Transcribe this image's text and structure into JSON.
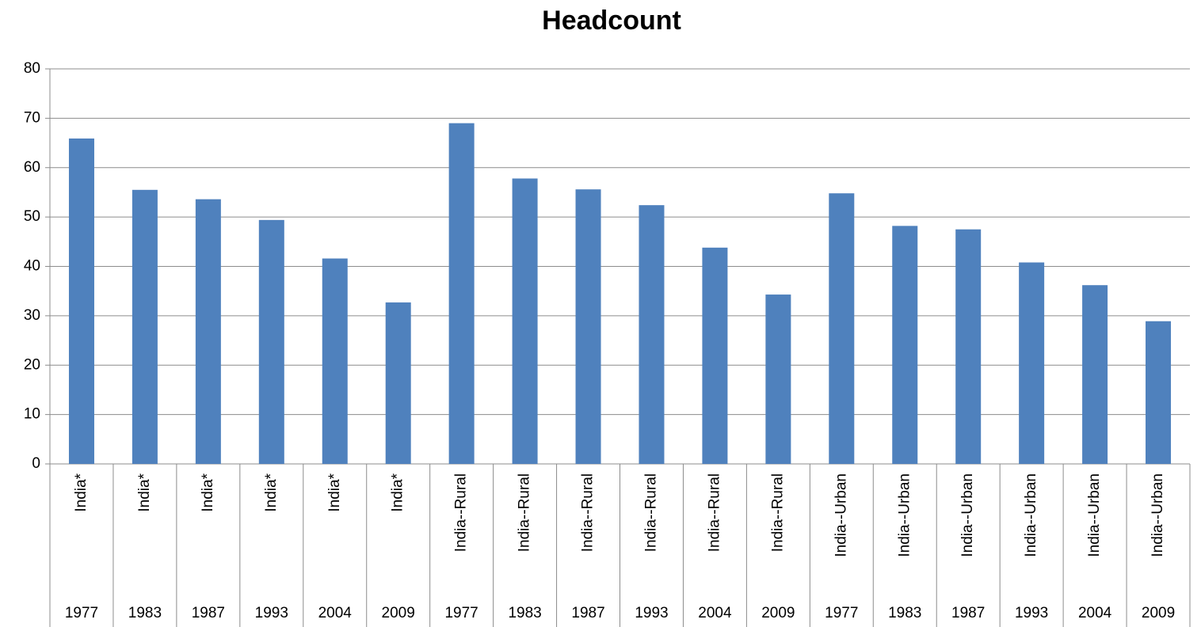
{
  "chart_data": {
    "type": "bar",
    "title": "Headcount",
    "categories": [
      {
        "name": "India*",
        "year": "1977"
      },
      {
        "name": "India*",
        "year": "1983"
      },
      {
        "name": "India*",
        "year": "1987"
      },
      {
        "name": "India*",
        "year": "1993"
      },
      {
        "name": "India*",
        "year": "2004"
      },
      {
        "name": "India*",
        "year": "2009"
      },
      {
        "name": "India--Rural",
        "year": "1977"
      },
      {
        "name": "India--Rural",
        "year": "1983"
      },
      {
        "name": "India--Rural",
        "year": "1987"
      },
      {
        "name": "India--Rural",
        "year": "1993"
      },
      {
        "name": "India--Rural",
        "year": "2004"
      },
      {
        "name": "India--Rural",
        "year": "2009"
      },
      {
        "name": "India--Urban",
        "year": "1977"
      },
      {
        "name": "India--Urban",
        "year": "1983"
      },
      {
        "name": "India--Urban",
        "year": "1987"
      },
      {
        "name": "India--Urban",
        "year": "1993"
      },
      {
        "name": "India--Urban",
        "year": "2004"
      },
      {
        "name": "India--Urban",
        "year": "2009"
      }
    ],
    "values": [
      65.9,
      55.5,
      53.6,
      49.4,
      41.6,
      32.7,
      69.0,
      57.8,
      55.6,
      52.4,
      43.8,
      34.3,
      54.8,
      48.2,
      47.5,
      40.8,
      36.2,
      28.9
    ],
    "color": "#4f81bd",
    "ylim": [
      0,
      80
    ],
    "yticks": [
      0,
      10,
      20,
      30,
      40,
      50,
      60,
      70,
      80
    ],
    "grid": true
  }
}
